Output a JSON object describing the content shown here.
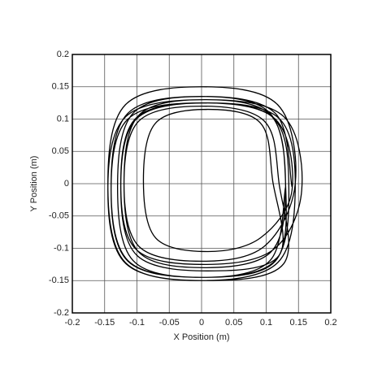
{
  "chart_data": {
    "type": "line",
    "xlabel": "X Position (m)",
    "ylabel": "Y Position (m)",
    "color": "#000000",
    "grid": true,
    "xlim": [
      -0.2,
      0.2
    ],
    "ylim": [
      -0.2,
      0.2
    ],
    "xticks": [
      -0.2,
      -0.15,
      -0.1,
      -0.05,
      0,
      0.05,
      0.1,
      0.15,
      0.2
    ],
    "yticks": [
      -0.2,
      -0.15,
      -0.1,
      -0.05,
      0,
      0.05,
      0.1,
      0.15,
      0.2
    ],
    "x": [
      0.14,
      0.114,
      0,
      -0.114,
      -0.14,
      -0.114,
      0,
      0.114,
      0.135,
      0.111,
      0.005,
      -0.101,
      -0.125,
      -0.101,
      0.005,
      0.111,
      0.155,
      0.127,
      0.005,
      -0.117,
      -0.145,
      -0.117,
      0.005,
      0.127,
      0.12,
      0.097,
      0,
      -0.097,
      -0.12,
      -0.097,
      0,
      0.097,
      0.145,
      0.118,
      0,
      -0.118,
      -0.145,
      -0.118,
      0,
      0.118,
      0.145,
      0.12,
      0.01,
      -0.1,
      -0.125,
      -0.1,
      0.01,
      0.12,
      0.11,
      0.091,
      0.01,
      -0.071,
      -0.09,
      -0.071,
      0.01,
      0.091,
      0.14,
      0.114,
      0,
      -0.114,
      -0.14,
      -0.114,
      0,
      0.114,
      0.13,
      0.107,
      0.005,
      -0.097,
      -0.12,
      -0.097,
      0.005,
      0.107,
      0.13,
      0.106,
      0,
      -0.106,
      -0.13,
      -0.106,
      0,
      0.106,
      0.13
    ],
    "values": [
      -0.005,
      0.109,
      0.135,
      0.109,
      -0.005,
      -0.119,
      -0.145,
      -0.119,
      0,
      0.102,
      0.125,
      0.102,
      0,
      -0.102,
      -0.125,
      -0.102,
      -0.01,
      0.104,
      0.13,
      0.104,
      -0.01,
      -0.124,
      -0.15,
      -0.124,
      0,
      0.097,
      0.12,
      0.097,
      0,
      -0.097,
      -0.12,
      -0.097,
      0,
      0.122,
      0.15,
      0.122,
      0,
      -0.122,
      -0.15,
      -0.122,
      -0.005,
      0.101,
      0.125,
      0.101,
      -0.005,
      -0.111,
      -0.135,
      -0.111,
      0.005,
      0.094,
      0.115,
      0.094,
      0.005,
      -0.084,
      -0.105,
      -0.084,
      -0.01,
      0.1,
      0.125,
      0.1,
      -0.01,
      -0.12,
      -0.145,
      -0.12,
      0,
      0.106,
      0.13,
      0.106,
      0,
      -0.106,
      -0.13,
      -0.106,
      -0.005,
      0.109,
      0.135,
      0.109,
      -0.005,
      -0.119,
      -0.145,
      -0.119,
      -0.005
    ]
  }
}
